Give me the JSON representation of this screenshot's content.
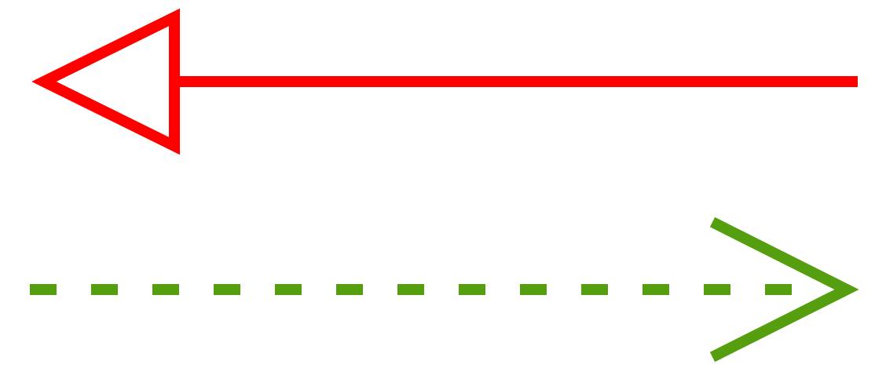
{
  "arrows": [
    {
      "name": "red-solid-arrow",
      "direction": "left",
      "line_style": "solid",
      "head_style": "open-triangle",
      "color": "#ff0000"
    },
    {
      "name": "green-dashed-arrow",
      "direction": "right",
      "line_style": "dashed",
      "head_style": "open-chevron",
      "color": "#559e0f"
    }
  ]
}
